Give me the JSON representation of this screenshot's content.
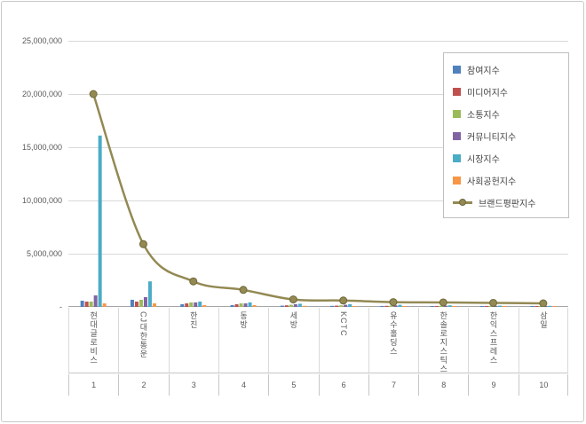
{
  "chart_data": {
    "type": "bar+line",
    "title": "",
    "xlabel": "",
    "ylabel": "",
    "ylim": [
      0,
      25000000
    ],
    "ytick_step": 5000000,
    "ytick_labels": [
      "-",
      "5,000,000",
      "10,000,000",
      "15,000,000",
      "20,000,000",
      "25,000,000"
    ],
    "grid": true,
    "legend_position": "right-top",
    "categories": [
      "현대글로비스",
      "CJ대한통운",
      "한진",
      "동방",
      "세방",
      "KCTC",
      "유수홀딩스",
      "한솔로지스틱스",
      "한익스프레스",
      "삼일"
    ],
    "rank_labels": [
      "1",
      "2",
      "3",
      "4",
      "5",
      "6",
      "7",
      "8",
      "9",
      "10"
    ],
    "series": [
      {
        "name": "참여지수",
        "type": "bar",
        "color": "#4F81BD",
        "values": [
          580000,
          670000,
          250000,
          170000,
          120000,
          100000,
          90000,
          80000,
          70000,
          60000
        ]
      },
      {
        "name": "미디어지수",
        "type": "bar",
        "color": "#C0504D",
        "values": [
          500000,
          500000,
          330000,
          250000,
          150000,
          120000,
          100000,
          90000,
          80000,
          70000
        ]
      },
      {
        "name": "소통지수",
        "type": "bar",
        "color": "#9BBB59",
        "values": [
          500000,
          670000,
          420000,
          330000,
          200000,
          150000,
          120000,
          100000,
          90000,
          80000
        ]
      },
      {
        "name": "커뮤니티지수",
        "type": "bar",
        "color": "#8064A2",
        "values": [
          1080000,
          920000,
          420000,
          330000,
          250000,
          200000,
          150000,
          120000,
          100000,
          90000
        ]
      },
      {
        "name": "시장지수",
        "type": "bar",
        "color": "#4BACC6",
        "values": [
          16100000,
          2400000,
          500000,
          420000,
          300000,
          250000,
          200000,
          150000,
          120000,
          100000
        ]
      },
      {
        "name": "사회공헌지수",
        "type": "bar",
        "color": "#F79646",
        "values": [
          330000,
          330000,
          170000,
          170000,
          100000,
          80000,
          70000,
          60000,
          50000,
          50000
        ]
      },
      {
        "name": "브랜드평판지수",
        "type": "line",
        "color": "#938953",
        "marker_stroke": "#6e6839",
        "values": [
          20000000,
          5900000,
          2400000,
          1600000,
          700000,
          600000,
          450000,
          420000,
          380000,
          330000
        ]
      }
    ],
    "colors": {
      "gridline": "#d9d9d9",
      "axis_line": "#a6a6a6",
      "separator_light": "#d9d9d9",
      "separator_dark": "#c6c6c6"
    }
  }
}
